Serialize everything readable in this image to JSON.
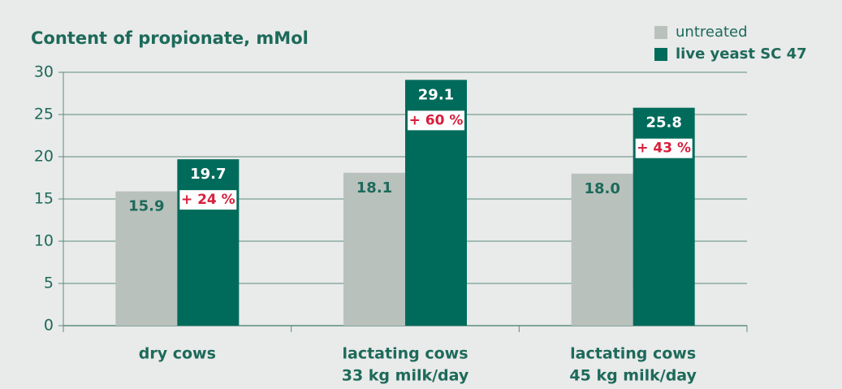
{
  "chart_data": {
    "type": "bar",
    "title": "Content of propionate, mMol",
    "categories": [
      [
        "dry cows"
      ],
      [
        "lactating cows",
        "33 kg milk/day"
      ],
      [
        "lactating cows",
        "45 kg milk/day"
      ]
    ],
    "series": [
      {
        "name": "untreated",
        "color": "#b9c1bd",
        "values": [
          15.9,
          18.1,
          18.0
        ],
        "value_labels": [
          "15.9",
          "18.1",
          "18.0"
        ]
      },
      {
        "name": "live yeast SC 47",
        "color": "#006b5b",
        "values": [
          19.7,
          29.1,
          25.8
        ],
        "annotations": [
          "+ 24 %",
          "+ 60 %",
          "+ 43 %"
        ]
      }
    ],
    "ylim": [
      0,
      30
    ],
    "yticks": [
      0,
      5,
      10,
      15,
      20,
      25,
      30
    ],
    "grid": true,
    "legend": "top-right"
  }
}
